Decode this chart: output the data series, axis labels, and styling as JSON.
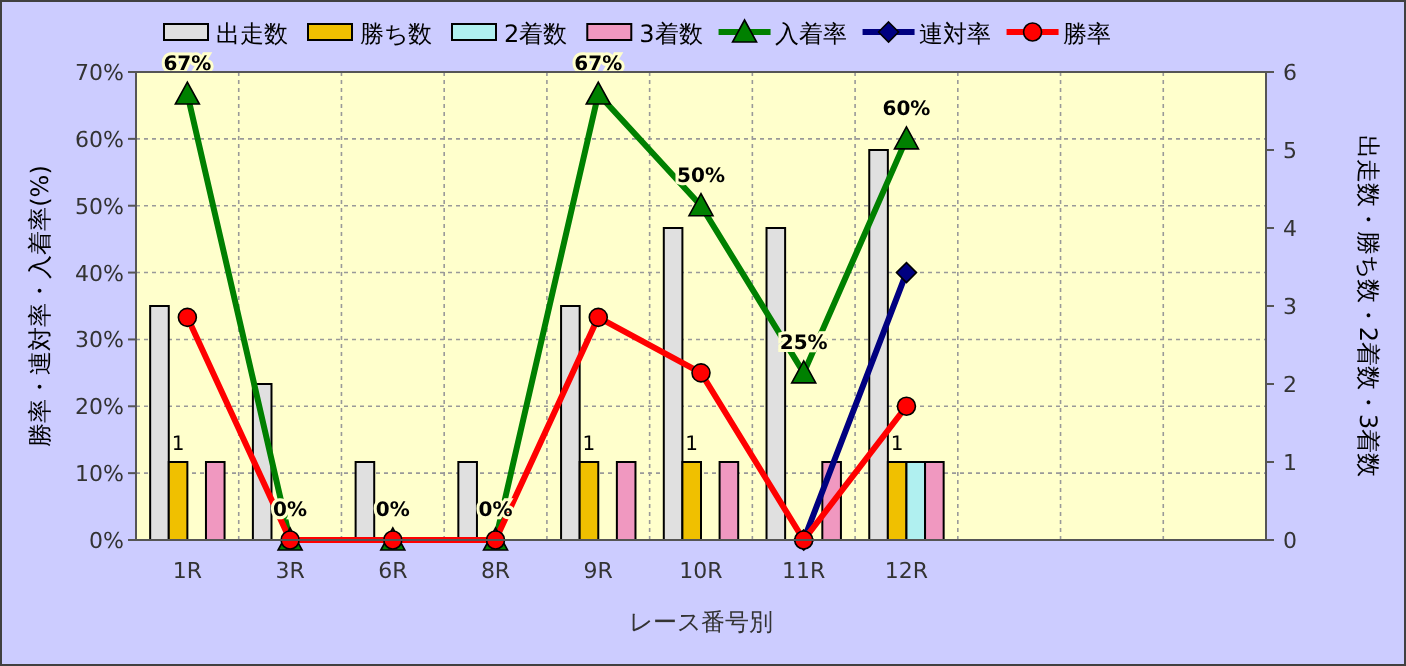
{
  "chart_data": {
    "type": "bar",
    "xlabel": "レース番号別",
    "ylabel": "勝率・連対率・入着率(%)",
    "y2label": "出走数・勝ち数・2着数・3着数",
    "categories": [
      "1R",
      "3R",
      "6R",
      "8R",
      "9R",
      "10R",
      "11R",
      "12R",
      null,
      null,
      null
    ],
    "ylim": [
      0,
      70
    ],
    "yticks": [
      {
        "value": 0,
        "label": "0%"
      },
      {
        "value": 10,
        "label": "10%"
      },
      {
        "value": 20,
        "label": "20%"
      },
      {
        "value": 30,
        "label": "30%"
      },
      {
        "value": 40,
        "label": "40%"
      },
      {
        "value": 50,
        "label": "50%"
      },
      {
        "value": 60,
        "label": "60%"
      },
      {
        "value": 70,
        "label": "70%"
      }
    ],
    "y2lim": [
      0,
      6
    ],
    "y2ticks": [
      0,
      1,
      2,
      3,
      4,
      5,
      6
    ],
    "grid": true,
    "legend": "top",
    "series": [
      {
        "name": "出走数",
        "color": "#e0e0e0",
        "axis": "y2",
        "values": [
          3,
          2,
          1,
          1,
          3,
          4,
          4,
          5,
          null,
          null,
          null
        ]
      },
      {
        "name": "勝ち数",
        "color": "#f0c000",
        "axis": "y2",
        "values": [
          1,
          0,
          0,
          0,
          1,
          1,
          0,
          1,
          null,
          null,
          null
        ],
        "value_labels": [
          "1",
          null,
          null,
          null,
          "1",
          "1",
          null,
          "1",
          null,
          null,
          null
        ]
      },
      {
        "name": "2着数",
        "color": "#b0f0f0",
        "axis": "y2",
        "values": [
          0,
          0,
          0,
          0,
          0,
          0,
          0,
          1,
          null,
          null,
          null
        ]
      },
      {
        "name": "3着数",
        "color": "#f098c0",
        "axis": "y2",
        "values": [
          1,
          0,
          0,
          0,
          1,
          1,
          1,
          1,
          null,
          null,
          null
        ]
      },
      {
        "name": "入着率",
        "type": "line",
        "color": "#008000",
        "marker": "triangle",
        "values": [
          66.7,
          0,
          0,
          0,
          66.7,
          50,
          25,
          60,
          null,
          null,
          null
        ],
        "value_labels": [
          "67%",
          "0%",
          "0%",
          "0%",
          "67%",
          "50%",
          "25%",
          "60%",
          null,
          null,
          null
        ]
      },
      {
        "name": "連対率",
        "type": "line",
        "color": "#000080",
        "marker": "diamond",
        "values": [
          null,
          null,
          null,
          null,
          null,
          null,
          0,
          40,
          null,
          null,
          null
        ]
      },
      {
        "name": "勝率",
        "type": "line",
        "color": "#ff0000",
        "marker": "circle",
        "values": [
          33.3,
          0,
          0,
          0,
          33.3,
          25,
          0,
          20,
          null,
          null,
          null
        ]
      }
    ]
  }
}
